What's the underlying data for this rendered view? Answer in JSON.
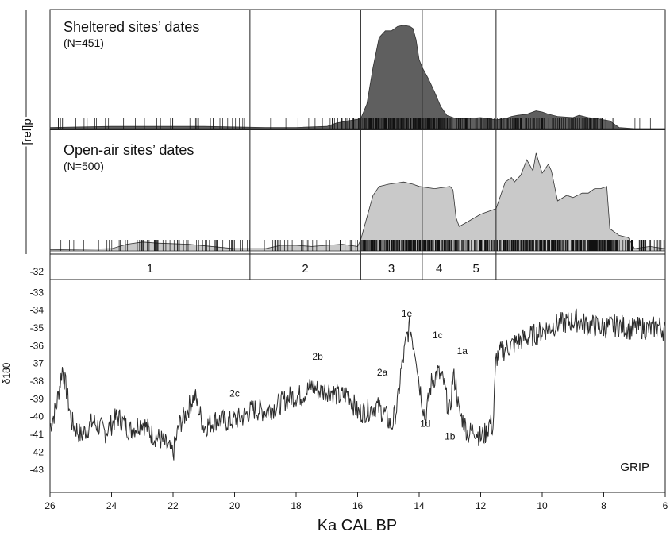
{
  "chart_data": [
    {
      "type": "area",
      "panel": "sheltered",
      "title": "Sheltered sites’ dates",
      "subtitle": "(N=451)",
      "ylabel": "[rel]p",
      "color": "#5f5f5f",
      "xlim": [
        26,
        6
      ],
      "x": [
        26,
        24,
        22,
        21,
        19,
        18,
        17,
        16.7,
        16.3,
        16.1,
        15.9,
        15.7,
        15.5,
        15.3,
        15.1,
        14.9,
        14.7,
        14.5,
        14.3,
        14.2,
        14.1,
        14.0,
        13.9,
        13.7,
        13.5,
        13.3,
        13.1,
        12.8,
        12.5,
        12.0,
        11.5,
        11.2,
        11.0,
        10.8,
        10.5,
        10.2,
        10.0,
        9.8,
        9.5,
        9.0,
        8.8,
        8.5,
        8.2,
        7.8,
        7.6,
        7.5,
        7.0,
        6.5,
        6.0
      ],
      "values": [
        0.01,
        0.02,
        0.02,
        0.02,
        0.01,
        0.01,
        0.02,
        0.05,
        0.07,
        0.08,
        0.09,
        0.22,
        0.55,
        0.82,
        0.88,
        0.88,
        0.92,
        0.93,
        0.92,
        0.9,
        0.8,
        0.62,
        0.55,
        0.45,
        0.33,
        0.2,
        0.12,
        0.09,
        0.09,
        0.1,
        0.08,
        0.09,
        0.11,
        0.12,
        0.13,
        0.16,
        0.15,
        0.13,
        0.11,
        0.1,
        0.12,
        0.1,
        0.09,
        0.07,
        0.03,
        0.01,
        0.0,
        0.0,
        0.0
      ]
    },
    {
      "type": "area",
      "panel": "open-air",
      "title": "Open-air sites’ dates",
      "subtitle": "(N=500)",
      "color": "#c9c9c9",
      "xlim": [
        26,
        6
      ],
      "x": [
        26,
        24,
        23.5,
        23,
        22.5,
        21.5,
        20,
        19.5,
        19,
        18.5,
        18,
        17.5,
        16.5,
        16,
        15.9,
        15.7,
        15.5,
        15.3,
        15.0,
        14.5,
        14.2,
        14.0,
        13.5,
        13.0,
        12.9,
        12.8,
        12.7,
        12.5,
        12.0,
        11.7,
        11.5,
        11.2,
        11.0,
        10.9,
        10.7,
        10.5,
        10.3,
        10.2,
        10.0,
        9.8,
        9.7,
        9.5,
        9.2,
        9.0,
        8.7,
        8.5,
        8.3,
        8.1,
        7.9,
        7.8,
        7.5,
        7.2,
        7.0,
        6.5,
        6.0
      ],
      "values": [
        0.01,
        0.02,
        0.06,
        0.08,
        0.07,
        0.06,
        0.02,
        0.02,
        0.02,
        0.05,
        0.05,
        0.04,
        0.06,
        0.04,
        0.1,
        0.3,
        0.5,
        0.58,
        0.6,
        0.62,
        0.6,
        0.58,
        0.56,
        0.58,
        0.55,
        0.3,
        0.22,
        0.25,
        0.33,
        0.36,
        0.38,
        0.62,
        0.66,
        0.62,
        0.68,
        0.82,
        0.72,
        0.88,
        0.7,
        0.78,
        0.72,
        0.45,
        0.5,
        0.48,
        0.52,
        0.52,
        0.56,
        0.56,
        0.58,
        0.2,
        0.14,
        0.12,
        0.02,
        0.04,
        0.02
      ]
    },
    {
      "type": "line",
      "panel": "grip",
      "label": "GRIP",
      "ylabel": "δ180",
      "xlabel": "Ka CAL BP",
      "xlim": [
        26,
        6
      ],
      "ylim": [
        -44,
        -32
      ],
      "xticks": [
        26,
        24,
        22,
        20,
        18,
        16,
        14,
        12,
        10,
        8,
        6
      ],
      "yticks": [
        -32,
        -33,
        -34,
        -35,
        -36,
        -37,
        -38,
        -39,
        -40,
        -41,
        -42,
        -43
      ],
      "x": [
        26.0,
        25.8,
        25.6,
        25.5,
        25.3,
        25.0,
        24.6,
        24.2,
        23.8,
        23.4,
        23.0,
        22.7,
        22.4,
        22.2,
        22.0,
        21.8,
        21.6,
        21.3,
        21.0,
        20.6,
        20.2,
        19.8,
        19.4,
        19.0,
        18.6,
        18.2,
        17.8,
        17.5,
        17.2,
        16.9,
        16.6,
        16.3,
        16.0,
        15.7,
        15.4,
        15.1,
        14.9,
        14.7,
        14.6,
        14.5,
        14.4,
        14.3,
        14.2,
        14.1,
        14.0,
        13.9,
        13.8,
        13.6,
        13.4,
        13.2,
        13.1,
        13.0,
        12.9,
        12.8,
        12.7,
        12.6,
        12.4,
        12.2,
        12.0,
        11.8,
        11.7,
        11.6,
        11.5,
        11.3,
        11.0,
        10.7,
        10.4,
        10.1,
        9.8,
        9.5,
        9.2,
        8.9,
        8.6,
        8.3,
        8.0,
        7.7,
        7.4,
        7.1,
        6.8,
        6.5,
        6.2,
        6.0
      ],
      "values": [
        -41.3,
        -40.2,
        -38.0,
        -38.9,
        -41.0,
        -41.8,
        -41.0,
        -41.6,
        -40.7,
        -41.5,
        -41.0,
        -41.7,
        -42.0,
        -42.4,
        -42.8,
        -41.2,
        -40.6,
        -39.5,
        -41.3,
        -40.9,
        -41.0,
        -40.8,
        -40.3,
        -40.4,
        -40.1,
        -39.6,
        -39.5,
        -39.0,
        -39.3,
        -39.2,
        -39.6,
        -39.4,
        -40.5,
        -40.4,
        -40.1,
        -40.6,
        -41.3,
        -40.0,
        -38.3,
        -37.3,
        -36.2,
        -35.6,
        -36.5,
        -37.2,
        -38.8,
        -39.8,
        -40.9,
        -38.8,
        -38.2,
        -38.8,
        -39.8,
        -40.5,
        -38.4,
        -38.9,
        -40.6,
        -40.8,
        -41.7,
        -41.4,
        -41.9,
        -41.6,
        -41.0,
        -41.4,
        -37.4,
        -37.0,
        -36.7,
        -36.4,
        -36.2,
        -36.0,
        -35.7,
        -35.5,
        -35.4,
        -35.3,
        -35.5,
        -35.6,
        -35.7,
        -35.6,
        -35.6,
        -35.8,
        -35.7,
        -35.8,
        -35.6,
        -35.9
      ]
    }
  ],
  "zones": [
    {
      "label": "1",
      "from": 26,
      "to": 19.5
    },
    {
      "label": "2",
      "from": 19.5,
      "to": 15.9
    },
    {
      "label": "3",
      "from": 15.9,
      "to": 13.9
    },
    {
      "label": "4",
      "from": 13.9,
      "to": 12.8
    },
    {
      "label": "5",
      "from": 12.8,
      "to": 11.5
    }
  ],
  "annotations": [
    {
      "text": "1e",
      "x": 14.4,
      "y": -35.1
    },
    {
      "text": "1c",
      "x": 13.4,
      "y": -36.3
    },
    {
      "text": "1a",
      "x": 12.6,
      "y": -37.2
    },
    {
      "text": "2b",
      "x": 17.3,
      "y": -37.5
    },
    {
      "text": "2a",
      "x": 15.2,
      "y": -38.4
    },
    {
      "text": "2c",
      "x": 20.0,
      "y": -39.6
    },
    {
      "text": "1d",
      "x": 13.8,
      "y": -41.3
    },
    {
      "text": "1b",
      "x": 13.0,
      "y": -42.0
    }
  ]
}
